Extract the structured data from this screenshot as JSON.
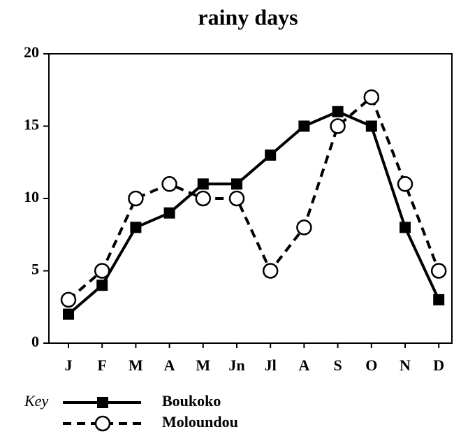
{
  "chart_data": {
    "type": "line",
    "title": "rainy days",
    "categories": [
      "J",
      "F",
      "M",
      "A",
      "M",
      "Jn",
      "Jl",
      "A",
      "S",
      "O",
      "N",
      "D"
    ],
    "series": [
      {
        "name": "Boukoko",
        "color": "#000000",
        "marker": "square",
        "linestyle": "solid",
        "values": [
          2,
          4,
          8,
          9,
          11,
          11,
          13,
          15,
          16,
          15,
          8,
          3
        ]
      },
      {
        "name": "Moloundou",
        "color": "#000000",
        "marker": "circle",
        "linestyle": "dashed",
        "values": [
          3,
          5,
          10,
          11,
          10,
          10,
          5,
          8,
          15,
          17,
          11,
          5
        ]
      }
    ],
    "legend_title": "Key",
    "ylim": [
      0,
      20
    ],
    "yticks": [
      0,
      5,
      10,
      15,
      20
    ],
    "grid": false
  }
}
